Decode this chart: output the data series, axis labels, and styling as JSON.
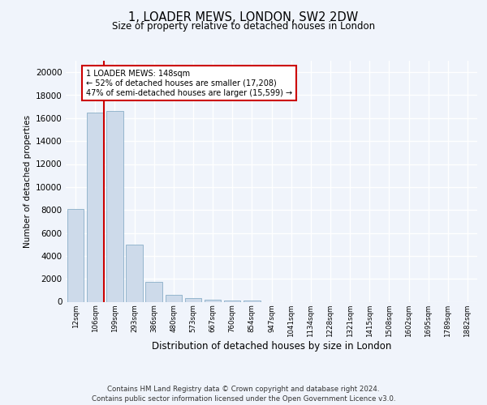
{
  "title_line1": "1, LOADER MEWS, LONDON, SW2 2DW",
  "title_line2": "Size of property relative to detached houses in London",
  "xlabel": "Distribution of detached houses by size in London",
  "ylabel": "Number of detached properties",
  "categories": [
    "12sqm",
    "106sqm",
    "199sqm",
    "293sqm",
    "386sqm",
    "480sqm",
    "573sqm",
    "667sqm",
    "760sqm",
    "854sqm",
    "947sqm",
    "1041sqm",
    "1134sqm",
    "1228sqm",
    "1321sqm",
    "1415sqm",
    "1508sqm",
    "1602sqm",
    "1695sqm",
    "1789sqm",
    "1882sqm"
  ],
  "values": [
    8050,
    16500,
    16600,
    5000,
    1700,
    600,
    350,
    200,
    130,
    80,
    0,
    0,
    0,
    0,
    0,
    0,
    0,
    0,
    0,
    0,
    0
  ],
  "bar_color": "#cddaea",
  "bar_edge_color": "#8aaec8",
  "annotation_text_line1": "1 LOADER MEWS: 148sqm",
  "annotation_text_line2": "← 52% of detached houses are smaller (17,208)",
  "annotation_text_line3": "47% of semi-detached houses are larger (15,599) →",
  "ylim": [
    0,
    21000
  ],
  "yticks": [
    0,
    2000,
    4000,
    6000,
    8000,
    10000,
    12000,
    14000,
    16000,
    18000,
    20000
  ],
  "footer_line1": "Contains HM Land Registry data © Crown copyright and database right 2024.",
  "footer_line2": "Contains public sector information licensed under the Open Government Licence v3.0.",
  "bg_color": "#f0f4fb",
  "plot_bg_color": "#f0f4fb",
  "grid_color": "#ffffff",
  "red_line_color": "#cc0000",
  "annotation_box_color": "#ffffff",
  "annotation_box_edge": "#cc0000"
}
